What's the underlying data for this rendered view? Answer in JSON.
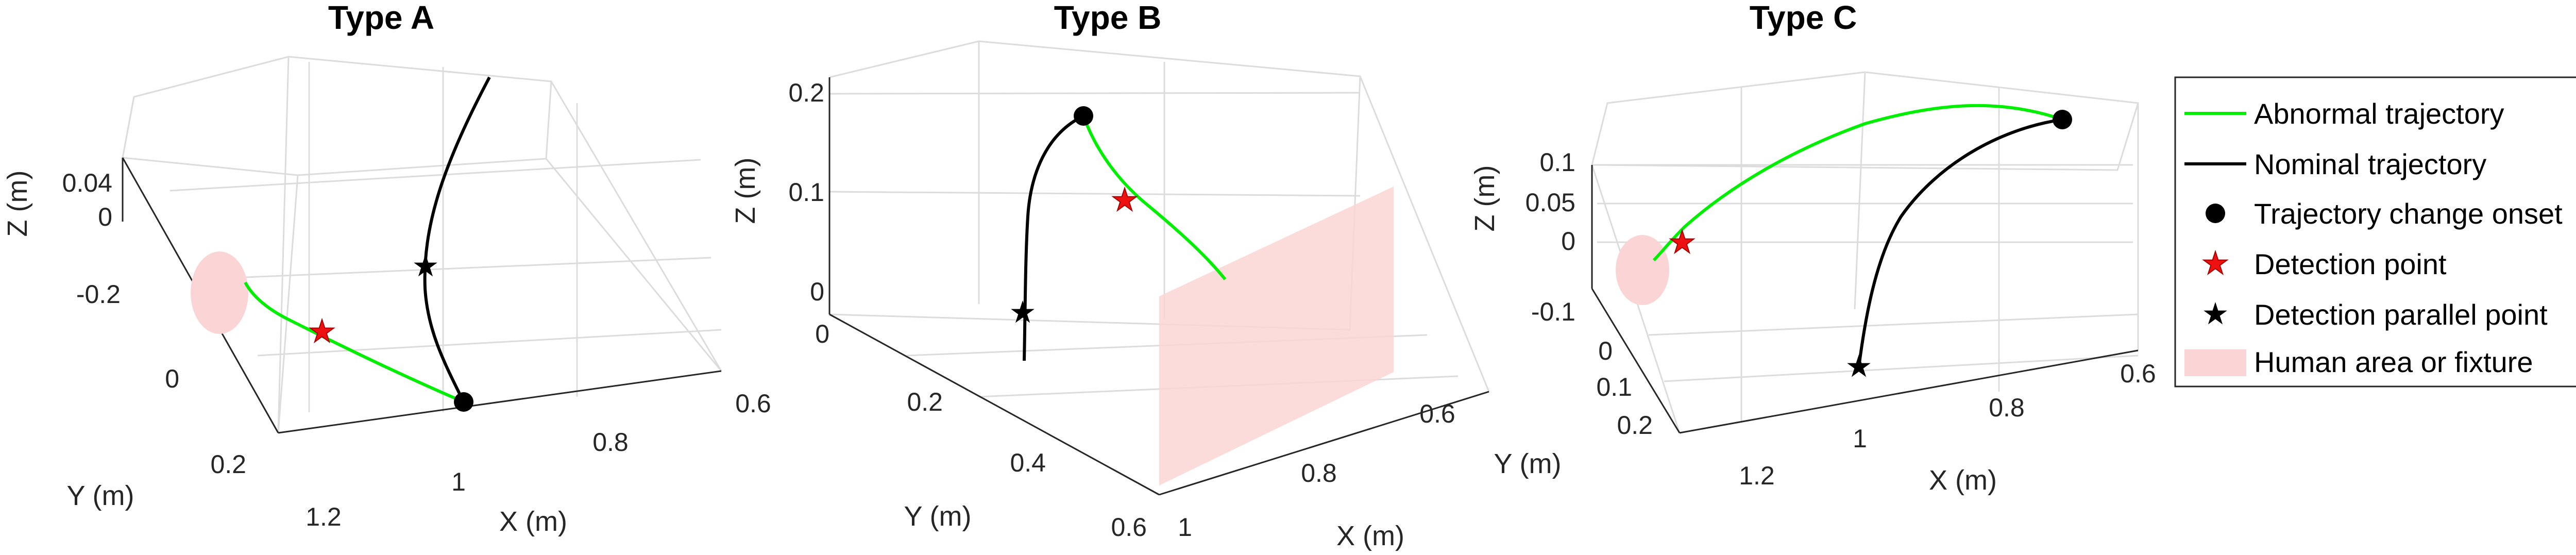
{
  "colors": {
    "abnormal": "#00ee00",
    "nominal": "#000000",
    "onset": "#000000",
    "detection": "#ee1111",
    "parallel": "#000000",
    "human_area": "#fbd5d5"
  },
  "chart_data": [
    {
      "type": "line",
      "projection": "3d",
      "title": "Type A",
      "xlabel": "X (m)",
      "ylabel": "Y (m)",
      "zlabel": "Z (m)",
      "xticks": [
        "0.6",
        "0.8",
        "1",
        "1.2"
      ],
      "yticks": [
        "-0.2",
        "0",
        "0.2"
      ],
      "zticks": [
        "0",
        "0.04"
      ],
      "grid": true,
      "series": [
        {
          "name": "Abnormal trajectory",
          "points": [
            [
              0.94,
              0.28,
              -0.02
            ],
            [
              1.04,
              0.16,
              -0.005
            ],
            [
              1.12,
              -0.02,
              0
            ],
            [
              1.16,
              -0.16,
              0.01
            ]
          ]
        },
        {
          "name": "Nominal trajectory",
          "points": [
            [
              0.94,
              0.28,
              -0.02
            ],
            [
              0.84,
              0.08,
              0.005
            ],
            [
              0.79,
              -0.06,
              0.03
            ],
            [
              0.72,
              -0.22,
              0.06
            ]
          ]
        },
        {
          "name": "Trajectory change onset",
          "points": [
            [
              0.94,
              0.28,
              -0.02
            ]
          ]
        },
        {
          "name": "Detection point",
          "points": [
            [
              1.09,
              0.06,
              -0.003
            ]
          ]
        },
        {
          "name": "Detection parallel point",
          "points": [
            [
              0.81,
              0.02,
              0.015
            ]
          ]
        },
        {
          "name": "Human area or fixture",
          "shape": "ellipse",
          "center": [
            1.24,
            -0.24,
            0.0
          ]
        }
      ]
    },
    {
      "type": "line",
      "projection": "3d",
      "title": "Type B",
      "xlabel": "X (m)",
      "ylabel": "Y (m)",
      "zlabel": "Z (m)",
      "xticks": [
        "0.6",
        "0.8",
        "1"
      ],
      "yticks": [
        "0",
        "0.2",
        "0.4",
        "0.6"
      ],
      "zticks": [
        "0",
        "0.1",
        "0.2"
      ],
      "grid": true,
      "series": [
        {
          "name": "Abnormal trajectory",
          "points": [
            [
              0.87,
              0.16,
              0.18
            ],
            [
              0.85,
              0.2,
              0.14
            ],
            [
              0.83,
              0.26,
              0.1
            ],
            [
              0.8,
              0.34,
              0.06
            ]
          ]
        },
        {
          "name": "Nominal trajectory",
          "points": [
            [
              0.87,
              0.16,
              0.18
            ],
            [
              0.9,
              0.14,
              0.13
            ],
            [
              0.94,
              0.12,
              0.06
            ],
            [
              0.96,
              0.12,
              0.0
            ]
          ]
        },
        {
          "name": "Trajectory change onset",
          "points": [
            [
              0.87,
              0.16,
              0.18
            ]
          ]
        },
        {
          "name": "Detection point",
          "points": [
            [
              0.85,
              0.22,
              0.13
            ]
          ]
        },
        {
          "name": "Detection parallel point",
          "points": [
            [
              0.95,
              0.12,
              0.03
            ]
          ]
        },
        {
          "name": "Human area or fixture",
          "shape": "plane"
        }
      ]
    },
    {
      "type": "line",
      "projection": "3d",
      "title": "Type C",
      "xlabel": "X (m)",
      "ylabel": "Y (m)",
      "zlabel": "Z (m)",
      "xticks": [
        "0.6",
        "0.8",
        "1",
        "1.2"
      ],
      "yticks": [
        "-0.1",
        "0",
        "0.1",
        "0.2"
      ],
      "zticks": [
        "0",
        "0.05",
        "0.1"
      ],
      "grid": true,
      "series": [
        {
          "name": "Abnormal trajectory",
          "points": [
            [
              0.72,
              -0.05,
              0.1
            ],
            [
              0.85,
              -0.1,
              0.09
            ],
            [
              1.0,
              -0.12,
              0.06
            ],
            [
              1.18,
              -0.12,
              0.0
            ]
          ]
        },
        {
          "name": "Nominal trajectory",
          "points": [
            [
              0.72,
              -0.05,
              0.1
            ],
            [
              0.8,
              0.06,
              0.07
            ],
            [
              0.86,
              0.14,
              0.03
            ],
            [
              0.92,
              0.2,
              -0.02
            ]
          ]
        },
        {
          "name": "Trajectory change onset",
          "points": [
            [
              0.72,
              -0.05,
              0.1
            ]
          ]
        },
        {
          "name": "Detection point",
          "points": [
            [
              1.16,
              -0.12,
              0.01
            ]
          ]
        },
        {
          "name": "Detection parallel point",
          "points": [
            [
              0.92,
              0.2,
              -0.02
            ]
          ]
        },
        {
          "name": "Human area or fixture",
          "shape": "ellipse",
          "center": [
            1.22,
            -0.12,
            0.0
          ]
        }
      ]
    }
  ],
  "legend": {
    "placement": "right",
    "items": [
      {
        "label": "Abnormal trajectory",
        "marker": "line-green"
      },
      {
        "label": "Nominal trajectory",
        "marker": "line-black"
      },
      {
        "label": "Trajectory change onset",
        "marker": "filled-circle"
      },
      {
        "label": "Detection point",
        "marker": "red-star"
      },
      {
        "label": "Detection parallel point",
        "marker": "black-star"
      },
      {
        "label": "Human area or fixture",
        "marker": "pink-patch"
      }
    ]
  }
}
